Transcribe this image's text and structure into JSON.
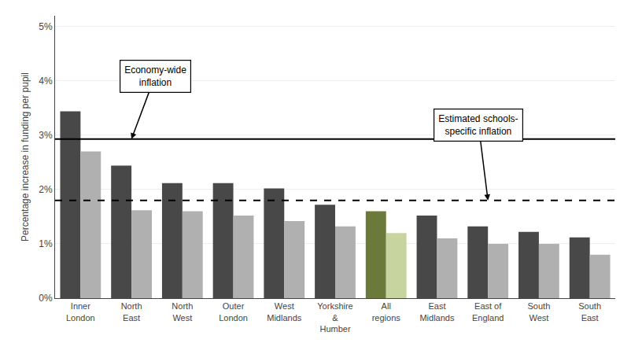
{
  "chart_data": {
    "type": "bar",
    "categories": [
      "Inner\nLondon",
      "North\nEast",
      "North\nWest",
      "Outer\nLondon",
      "West\nMidlands",
      "Yorkshire\n&\nHumber",
      "All\nregions",
      "East\nMidlands",
      "East of\nEngland",
      "South\nWest",
      "South\nEast"
    ],
    "series": [
      {
        "values": [
          3.44,
          2.44,
          2.12,
          2.12,
          2.02,
          1.72,
          1.6,
          1.52,
          1.32,
          1.22,
          1.12
        ],
        "colors": [
          "#484848",
          "#484848",
          "#484848",
          "#484848",
          "#484848",
          "#484848",
          "#6b7a3a",
          "#484848",
          "#484848",
          "#484848",
          "#484848"
        ]
      },
      {
        "values": [
          2.7,
          1.62,
          1.6,
          1.52,
          1.42,
          1.32,
          1.2,
          1.1,
          1.0,
          1.0,
          0.8
        ],
        "colors": [
          "#b0b0b0",
          "#b0b0b0",
          "#b0b0b0",
          "#b0b0b0",
          "#b0b0b0",
          "#b0b0b0",
          "#c8d4a0",
          "#b0b0b0",
          "#b0b0b0",
          "#b0b0b0",
          "#b0b0b0"
        ]
      }
    ],
    "ylabel": "Percentage increase in funding per pupil",
    "ylim": [
      0,
      5.2
    ],
    "yticks": [
      {
        "value": 0,
        "label": "0%"
      },
      {
        "value": 1,
        "label": "1%"
      },
      {
        "value": 2,
        "label": "2%"
      },
      {
        "value": 3,
        "label": "3%"
      },
      {
        "value": 4,
        "label": "4%"
      },
      {
        "value": 5,
        "label": "5%"
      }
    ],
    "grid": true,
    "lines": [
      {
        "y": 2.93,
        "color": "#000000",
        "line_style": "solid",
        "label": "Economy-wide\ninflation"
      },
      {
        "y": 1.8,
        "color": "#000000",
        "line_style": "dashed",
        "label": "Estimated schools-\nspecific inflation"
      }
    ]
  }
}
